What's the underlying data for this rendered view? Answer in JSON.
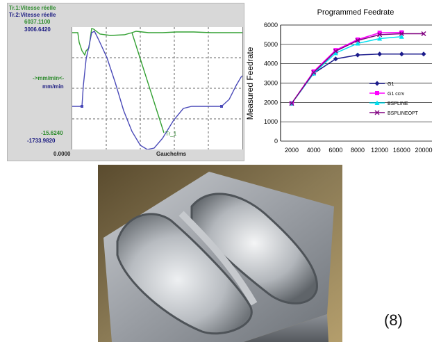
{
  "scope": {
    "trace1_label": "Tr.1:Vitesse réelle",
    "trace2_label": "Tr.2:Vitesse réelle",
    "y_top_1": "6037.1100",
    "y_top_2": "3006.6420",
    "unit_1": "->mm/min<-",
    "unit_2": "mm/min",
    "y_bottom_1": "-15.6240",
    "y_bottom_2": "-1733.9820",
    "x_start": "0.0000",
    "x_axis": "Gauche/ms",
    "marker": "Tr_1",
    "colors": {
      "trace1": "#32a032",
      "trace2": "#4a4ab8",
      "text1": "#2b8a2b",
      "text2": "#1a1a80"
    }
  },
  "chart_data": {
    "type": "line",
    "title": "Programmed Feedrate",
    "ylabel": "Measured Feedrate",
    "xlabel": "",
    "x": [
      2000,
      4000,
      6000,
      8000,
      12000,
      16000,
      20000
    ],
    "yticks": [
      0,
      1000,
      2000,
      3000,
      4000,
      5000,
      6000
    ],
    "ylim": [
      0,
      6000
    ],
    "grid": "horizontal",
    "legend_position": "right",
    "series": [
      {
        "name": "G1",
        "color": "#1c1c8c",
        "marker": "diamond",
        "values": [
          1950,
          3500,
          4250,
          4450,
          4500,
          4500,
          4500
        ]
      },
      {
        "name": "G1 ccrv",
        "color": "#ff00ff",
        "marker": "square",
        "values": [
          1950,
          3600,
          4700,
          5250,
          5600,
          5620,
          null
        ]
      },
      {
        "name": "BSPLINE",
        "color": "#00e0f0",
        "marker": "triangle",
        "values": [
          1950,
          3500,
          4550,
          5050,
          5300,
          5400,
          null
        ]
      },
      {
        "name": "BSPLINEOPT",
        "color": "#800080",
        "marker": "x",
        "values": [
          1950,
          3550,
          4650,
          5200,
          5500,
          5550,
          5550
        ]
      }
    ]
  },
  "caption": "(8)"
}
